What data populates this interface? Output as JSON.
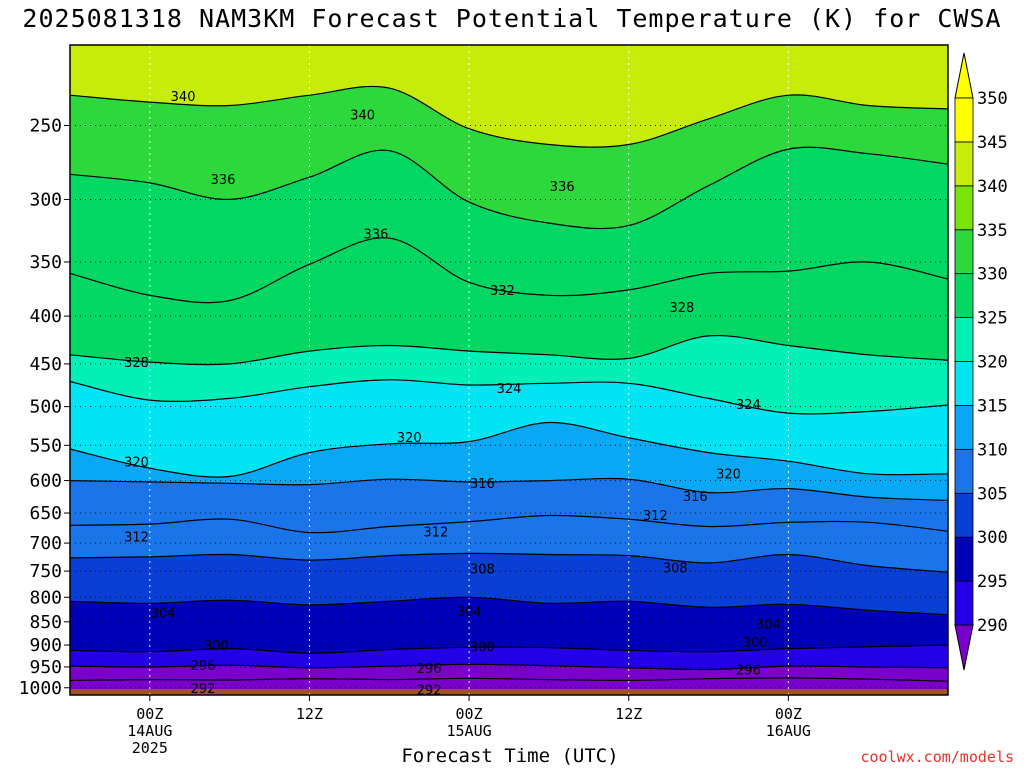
{
  "title": "2025081318 NAM3KM Forecast Potential Temperature (K) for CWSA",
  "x_axis_title": "Forecast Time (UTC)",
  "credit": "coolwx.com/models",
  "chart_data": {
    "type": "contour",
    "title": "2025081318 NAM3KM Forecast Potential Temperature (K) for CWSA",
    "xlabel": "Forecast Time (UTC)",
    "ylabel": "",
    "x_start_hours": -6,
    "x_end_hours": 60,
    "x_ticks": [
      {
        "hour": 0,
        "label": [
          "00Z",
          "14AUG",
          "2025"
        ]
      },
      {
        "hour": 12,
        "label": [
          "12Z"
        ]
      },
      {
        "hour": 24,
        "label": [
          "00Z",
          "15AUG"
        ]
      },
      {
        "hour": 36,
        "label": [
          "12Z"
        ]
      },
      {
        "hour": 48,
        "label": [
          "00Z",
          "16AUG"
        ]
      }
    ],
    "y_pressure_levels": [
      250,
      300,
      350,
      400,
      450,
      500,
      550,
      600,
      650,
      700,
      750,
      800,
      850,
      900,
      950,
      1000
    ],
    "colorbar": {
      "levels": [
        290,
        295,
        300,
        305,
        310,
        315,
        320,
        325,
        330,
        335,
        340,
        345,
        350
      ],
      "colors": [
        "#7a00cc",
        "#2300e6",
        "#0000b8",
        "#0a3fd6",
        "#1a75ea",
        "#08a8f4",
        "#00e4f4",
        "#00f0b8",
        "#00d863",
        "#2cd83c",
        "#7ce30a",
        "#c8ec0a",
        "#ffff00"
      ]
    },
    "contour_lines": [
      {
        "level": 292,
        "pressure": [
          982,
          980,
          981,
          978,
          980,
          977,
          980,
          982,
          978,
          976,
          979,
          984
        ]
      },
      {
        "level": 296,
        "pressure": [
          948,
          950,
          946,
          952,
          948,
          944,
          947,
          952,
          956,
          948,
          950,
          952
        ]
      },
      {
        "level": 300,
        "pressure": [
          912,
          915,
          908,
          918,
          910,
          905,
          906,
          912,
          915,
          908,
          904,
          900
        ]
      },
      {
        "level": 304,
        "pressure": [
          808,
          812,
          806,
          815,
          808,
          800,
          812,
          808,
          820,
          814,
          826,
          835
        ]
      },
      {
        "level": 308,
        "pressure": [
          726,
          724,
          720,
          730,
          722,
          718,
          720,
          722,
          735,
          720,
          740,
          752
        ]
      },
      {
        "level": 312,
        "pressure": [
          670,
          668,
          660,
          682,
          672,
          664,
          654,
          660,
          672,
          665,
          665,
          680
        ]
      },
      {
        "level": 316,
        "pressure": [
          600,
          602,
          604,
          606,
          598,
          602,
          600,
          598,
          618,
          612,
          625,
          630
        ]
      },
      {
        "level": 320,
        "pressure": [
          555,
          582,
          594,
          560,
          548,
          545,
          520,
          540,
          560,
          572,
          590,
          590
        ]
      },
      {
        "level": 324,
        "pressure": [
          470,
          492,
          490,
          476,
          468,
          474,
          472,
          472,
          490,
          508,
          506,
          498
        ]
      },
      {
        "level": 328,
        "pressure": [
          440,
          448,
          450,
          436,
          430,
          436,
          440,
          444,
          420,
          430,
          440,
          446
        ]
      },
      {
        "level": 332,
        "pressure": [
          360,
          380,
          385,
          352,
          330,
          368,
          380,
          375,
          360,
          358,
          350,
          365
        ]
      },
      {
        "level": 336,
        "pressure": [
          282,
          288,
          300,
          284,
          266,
          302,
          318,
          320,
          290,
          265,
          268,
          275
        ]
      },
      {
        "level": 340,
        "pressure": [
          232,
          236,
          238,
          232,
          228,
          252,
          262,
          262,
          246,
          232,
          238,
          240
        ]
      }
    ],
    "contour_labels": [
      {
        "text": "340",
        "hour": 2.5,
        "pressure": 233
      },
      {
        "text": "340",
        "hour": 16,
        "pressure": 244
      },
      {
        "text": "336",
        "hour": 5.5,
        "pressure": 286
      },
      {
        "text": "336",
        "hour": 17,
        "pressure": 327
      },
      {
        "text": "336",
        "hour": 31,
        "pressure": 291
      },
      {
        "text": "332",
        "hour": 26.5,
        "pressure": 376
      },
      {
        "text": "328",
        "hour": -1,
        "pressure": 449
      },
      {
        "text": "328",
        "hour": 40,
        "pressure": 392
      },
      {
        "text": "324",
        "hour": 27,
        "pressure": 479
      },
      {
        "text": "324",
        "hour": 45,
        "pressure": 498
      },
      {
        "text": "320",
        "hour": -1,
        "pressure": 574
      },
      {
        "text": "320",
        "hour": 19.5,
        "pressure": 540
      },
      {
        "text": "320",
        "hour": 43.5,
        "pressure": 591
      },
      {
        "text": "316",
        "hour": 25,
        "pressure": 605
      },
      {
        "text": "316",
        "hour": 41,
        "pressure": 625
      },
      {
        "text": "312",
        "hour": -1,
        "pressure": 690
      },
      {
        "text": "312",
        "hour": 21.5,
        "pressure": 682
      },
      {
        "text": "312",
        "hour": 38,
        "pressure": 655
      },
      {
        "text": "308",
        "hour": 25,
        "pressure": 747
      },
      {
        "text": "308",
        "hour": 39.5,
        "pressure": 745
      },
      {
        "text": "304",
        "hour": 1,
        "pressure": 833
      },
      {
        "text": "304",
        "hour": 24,
        "pressure": 830
      },
      {
        "text": "304",
        "hour": 46.5,
        "pressure": 857
      },
      {
        "text": "300",
        "hour": 5,
        "pressure": 902
      },
      {
        "text": "300",
        "hour": 25,
        "pressure": 905
      },
      {
        "text": "300",
        "hour": 45.5,
        "pressure": 895
      },
      {
        "text": "296",
        "hour": 4,
        "pressure": 948
      },
      {
        "text": "296",
        "hour": 21,
        "pressure": 955
      },
      {
        "text": "296",
        "hour": 45,
        "pressure": 958
      },
      {
        "text": "292",
        "hour": 4,
        "pressure": 1003
      },
      {
        "text": "292",
        "hour": 21,
        "pressure": 1007
      }
    ]
  }
}
